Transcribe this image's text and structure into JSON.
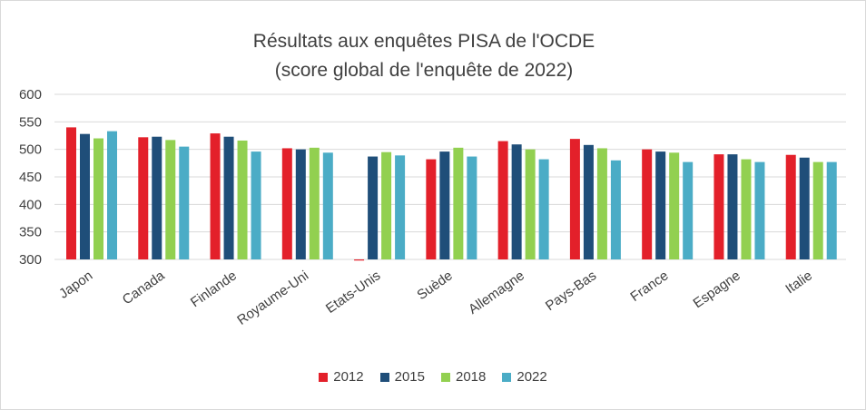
{
  "chart_data": {
    "type": "bar",
    "title": "Résultats aux enquêtes  PISA de l'OCDE",
    "subtitle": "(score global de l'enquête de 2022)",
    "categories": [
      "Japon",
      "Canada",
      "Finlande",
      "Royaume-Uni",
      "Etats-Unis",
      "Suède",
      "Allemagne",
      "Pays-Bas",
      "France",
      "Espagne",
      "Italie"
    ],
    "series": [
      {
        "name": "2012",
        "color": "#e3202a",
        "values": [
          540,
          522,
          529,
          502,
          298,
          482,
          515,
          519,
          500,
          491,
          490
        ]
      },
      {
        "name": "2015",
        "color": "#1f4e79",
        "values": [
          528,
          523,
          523,
          500,
          487,
          496,
          509,
          508,
          496,
          491,
          485
        ]
      },
      {
        "name": "2018",
        "color": "#92d050",
        "values": [
          520,
          517,
          516,
          503,
          495,
          503,
          500,
          502,
          494,
          482,
          477
        ]
      },
      {
        "name": "2022",
        "color": "#4bacc6",
        "values": [
          533,
          505,
          496,
          494,
          489,
          487,
          482,
          480,
          477,
          477,
          477
        ]
      }
    ],
    "xlabel": "",
    "ylabel": "",
    "ylim": [
      300,
      600
    ],
    "yticks": [
      300,
      350,
      400,
      450,
      500,
      550,
      600
    ],
    "grid": true,
    "legend_position": "bottom"
  }
}
